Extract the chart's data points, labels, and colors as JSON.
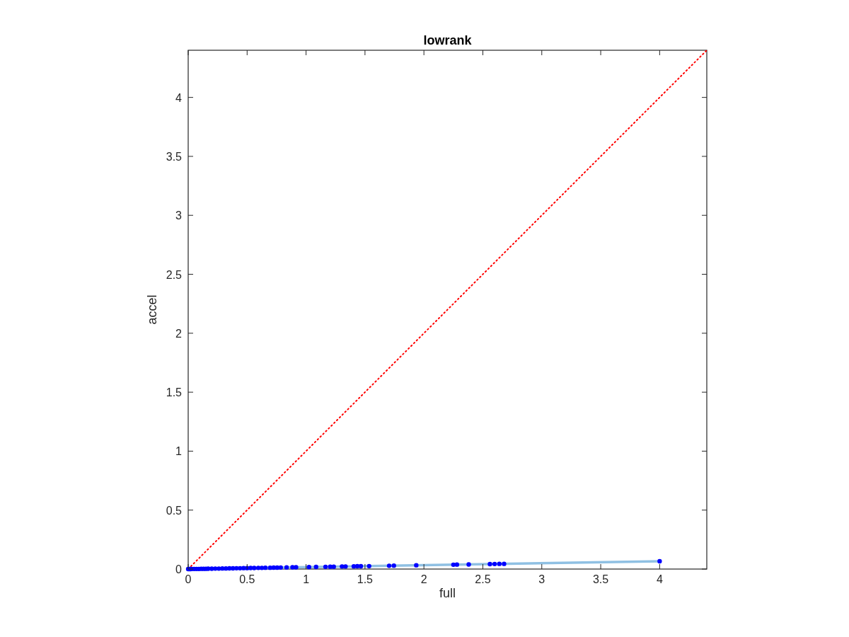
{
  "chart_data": {
    "type": "scatter",
    "title": "lowrank",
    "xlabel": "full",
    "ylabel": "accel",
    "xlim": [
      0,
      4.4
    ],
    "ylim": [
      0,
      4.4
    ],
    "xticks": [
      0,
      0.5,
      1,
      1.5,
      2,
      2.5,
      3,
      3.5,
      4
    ],
    "yticks": [
      0,
      0.5,
      1,
      1.5,
      2,
      2.5,
      3,
      3.5,
      4
    ],
    "grid": false,
    "series": [
      {
        "type": "line",
        "color": "#ff0000",
        "line_style": "dotted",
        "marker": "none",
        "x": [
          0,
          4.4
        ],
        "values": [
          0,
          4.4
        ]
      },
      {
        "type": "line",
        "color": "#8fc0e3",
        "line_style": "solid",
        "marker": "none",
        "x": [
          0,
          4
        ],
        "values": [
          0,
          0.066
        ]
      },
      {
        "color": "#0000ff",
        "marker": "circle",
        "x": [
          0,
          0.01,
          0.02,
          0.03,
          0.05,
          0.07,
          0.09,
          0.11,
          0.13,
          0.15,
          0.17,
          0.2,
          0.23,
          0.26,
          0.29,
          0.32,
          0.35,
          0.38,
          0.41,
          0.44,
          0.47,
          0.5,
          0.53,
          0.56,
          0.595,
          0.625,
          0.655,
          0.695,
          0.725,
          0.755,
          0.785,
          0.835,
          0.885,
          0.915,
          1.025,
          1.085,
          1.165,
          1.205,
          1.235,
          1.305,
          1.335,
          1.405,
          1.435,
          1.465,
          1.535,
          1.705,
          1.745,
          1.935,
          2.25,
          2.28,
          2.38,
          2.56,
          2.6,
          2.64,
          2.68,
          4
        ],
        "values": [
          0,
          0,
          0,
          0.001,
          0.001,
          0.001,
          0.001,
          0.002,
          0.002,
          0.002,
          0.003,
          0.003,
          0.004,
          0.004,
          0.005,
          0.005,
          0.006,
          0.006,
          0.007,
          0.007,
          0.008,
          0.008,
          0.009,
          0.009,
          0.01,
          0.01,
          0.011,
          0.011,
          0.012,
          0.012,
          0.013,
          0.014,
          0.015,
          0.015,
          0.017,
          0.018,
          0.019,
          0.02,
          0.02,
          0.022,
          0.022,
          0.023,
          0.024,
          0.024,
          0.025,
          0.028,
          0.029,
          0.032,
          0.037,
          0.038,
          0.039,
          0.042,
          0.043,
          0.044,
          0.044,
          0.066
        ]
      }
    ]
  }
}
